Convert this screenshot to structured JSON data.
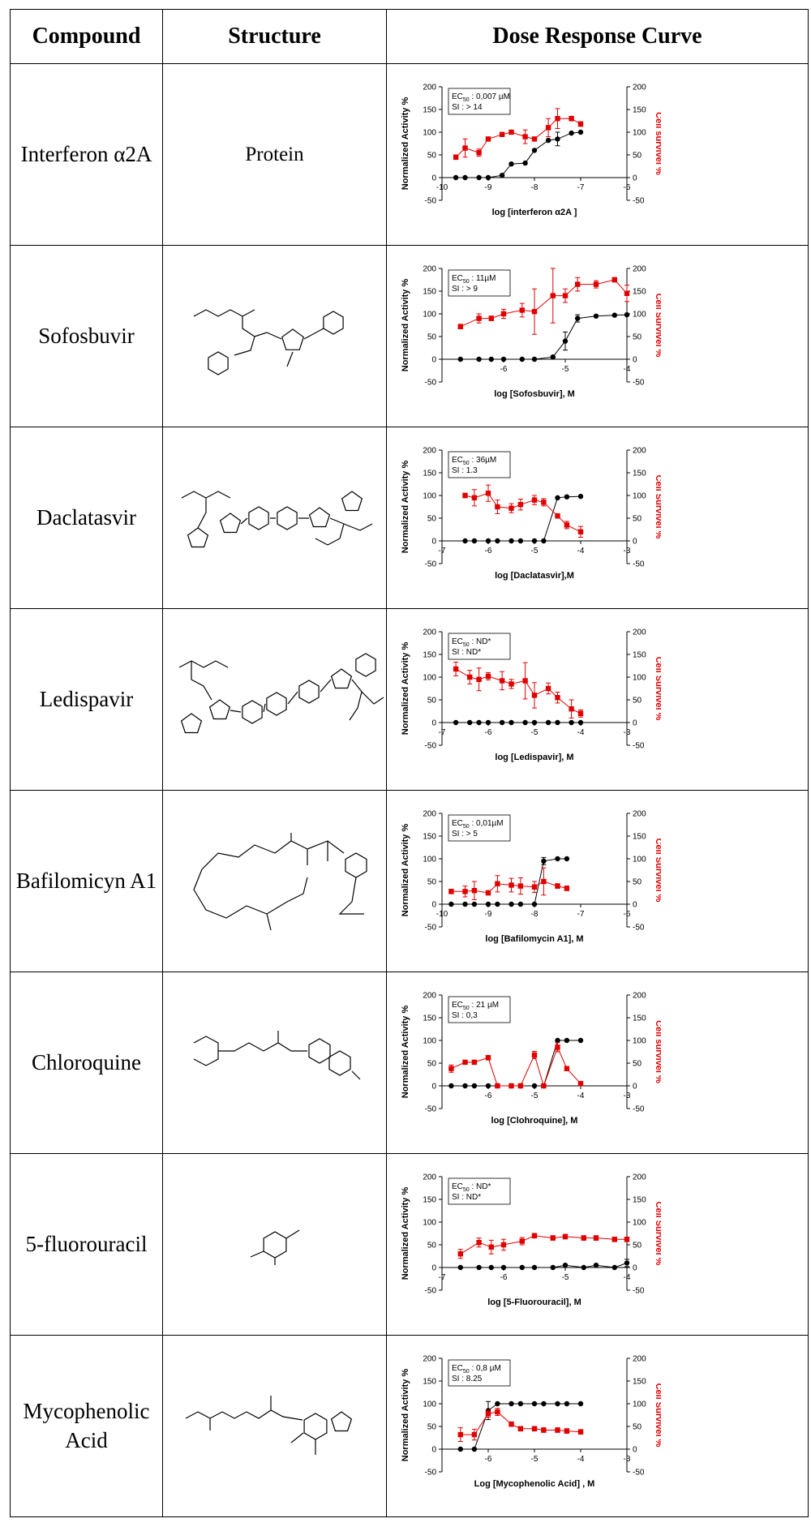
{
  "headers": [
    "Compound",
    "Structure",
    "Dose Response Curve"
  ],
  "colors": {
    "activity": "#000000",
    "survival": "#e00000"
  },
  "rows": [
    {
      "compound": "Interferon α2A",
      "structure_text": "Protein",
      "structure_icon": "",
      "chart_data": {
        "type": "scatter",
        "xlabel": "log [interferon α2A ]",
        "ylabel": "Normalized Activity %",
        "y2label": "Cell survivel %",
        "xlim": [
          -10,
          -6
        ],
        "xticks": [
          -10,
          -9,
          -8,
          -7,
          -6
        ],
        "ylim": [
          -50,
          200
        ],
        "ec50": "0,007 µM",
        "si": "> 14",
        "series": [
          {
            "name": "Normalized Activity %",
            "x": [
              -9.7,
              -9.5,
              -9.2,
              -9.0,
              -8.7,
              -8.5,
              -8.2,
              -8.0,
              -7.7,
              -7.5,
              -7.2,
              -7.0
            ],
            "y": [
              0,
              0,
              0,
              0,
              5,
              30,
              32,
              60,
              82,
              85,
              98,
              100
            ],
            "err": [
              0,
              0,
              0,
              0,
              0,
              0,
              0,
              0,
              0,
              15,
              0,
              0
            ]
          },
          {
            "name": "Cell survivel %",
            "x": [
              -9.7,
              -9.5,
              -9.2,
              -9.0,
              -8.7,
              -8.5,
              -8.2,
              -8.0,
              -7.7,
              -7.5,
              -7.2,
              -7.0
            ],
            "y": [
              45,
              65,
              55,
              85,
              95,
              100,
              90,
              85,
              110,
              130,
              130,
              118
            ],
            "err": [
              5,
              20,
              8,
              0,
              0,
              0,
              15,
              0,
              20,
              22,
              5,
              5
            ]
          }
        ]
      }
    },
    {
      "compound": "Sofosbuvir",
      "structure_text": "",
      "structure_icon": "sofosbuvir-structure",
      "chart_data": {
        "type": "scatter",
        "xlabel": "log [Sofosbuvir], M",
        "ylabel": "Normalized Activity %",
        "y2label": "Cell Survivel %",
        "xlim": [
          -7,
          -4
        ],
        "xticks": [
          -6,
          -5,
          -4
        ],
        "ylim": [
          -50,
          200
        ],
        "ec50": "11µM",
        "si": "> 9",
        "series": [
          {
            "name": "Normalized Activity %",
            "x": [
              -6.7,
              -6.4,
              -6.2,
              -6.0,
              -5.7,
              -5.5,
              -5.2,
              -5.0,
              -4.8,
              -4.5,
              -4.2,
              -4.0
            ],
            "y": [
              0,
              0,
              0,
              0,
              0,
              0,
              5,
              40,
              90,
              95,
              97,
              98
            ],
            "err": [
              0,
              0,
              0,
              0,
              0,
              0,
              0,
              20,
              8,
              0,
              0,
              0
            ]
          },
          {
            "name": "Cell Survivel %",
            "x": [
              -6.7,
              -6.4,
              -6.2,
              -6.0,
              -5.7,
              -5.5,
              -5.2,
              -5.0,
              -4.8,
              -4.5,
              -4.2,
              -4.0
            ],
            "y": [
              72,
              90,
              90,
              100,
              108,
              105,
              140,
              140,
              165,
              165,
              175,
              145
            ],
            "err": [
              5,
              10,
              5,
              10,
              15,
              50,
              60,
              15,
              15,
              8,
              5,
              18
            ]
          }
        ]
      }
    },
    {
      "compound": "Daclatasvir",
      "structure_text": "",
      "structure_icon": "daclatasvir-structure",
      "chart_data": {
        "type": "scatter",
        "xlabel": "log [Daclatasvir],M",
        "ylabel": "Normalized Activity %",
        "y2label": "Cell Survivel %",
        "xlim": [
          -7,
          -3
        ],
        "xticks": [
          -7,
          -6,
          -5,
          -4,
          -3
        ],
        "ylim": [
          -50,
          200
        ],
        "ec50": "36µM",
        "si": "1.3",
        "series": [
          {
            "name": "Normalized Activity %",
            "x": [
              -6.5,
              -6.3,
              -6.0,
              -5.8,
              -5.5,
              -5.3,
              -5.0,
              -4.8,
              -4.5,
              -4.3,
              -4.0
            ],
            "y": [
              0,
              0,
              0,
              0,
              0,
              0,
              0,
              0,
              95,
              97,
              98
            ],
            "err": [
              0,
              0,
              0,
              0,
              0,
              0,
              0,
              0,
              0,
              0,
              0
            ]
          },
          {
            "name": "Cell Survivel %",
            "x": [
              -6.5,
              -6.3,
              -6.0,
              -5.8,
              -5.5,
              -5.3,
              -5.0,
              -4.8,
              -4.5,
              -4.3,
              -4.0
            ],
            "y": [
              100,
              95,
              105,
              75,
              72,
              80,
              90,
              85,
              55,
              35,
              20
            ],
            "err": [
              5,
              18,
              18,
              15,
              10,
              12,
              10,
              8,
              5,
              8,
              12
            ]
          }
        ]
      }
    },
    {
      "compound": "Ledispavir",
      "structure_text": "",
      "structure_icon": "ledispavir-structure",
      "chart_data": {
        "type": "scatter",
        "xlabel": "log [Ledispavir], M",
        "ylabel": "Normalized Activity %",
        "y2label": "Cell Survivel %",
        "xlim": [
          -7,
          -3
        ],
        "xticks": [
          -7,
          -6,
          -5,
          -4,
          -3
        ],
        "ylim": [
          -50,
          200
        ],
        "ec50": "ND*",
        "si": "ND*",
        "series": [
          {
            "name": "Normalized Activity %",
            "x": [
              -6.7,
              -6.4,
              -6.2,
              -6.0,
              -5.7,
              -5.5,
              -5.2,
              -5.0,
              -4.7,
              -4.5,
              -4.2,
              -4.0
            ],
            "y": [
              0,
              0,
              0,
              0,
              0,
              0,
              0,
              0,
              0,
              0,
              0,
              0
            ],
            "err": [
              0,
              0,
              0,
              0,
              0,
              0,
              0,
              0,
              0,
              0,
              0,
              0
            ]
          },
          {
            "name": "Cell Survivel %",
            "x": [
              -6.7,
              -6.4,
              -6.2,
              -6.0,
              -5.7,
              -5.5,
              -5.2,
              -5.0,
              -4.7,
              -4.5,
              -4.2,
              -4.0
            ],
            "y": [
              118,
              100,
              95,
              102,
              92,
              85,
              92,
              60,
              75,
              55,
              30,
              20
            ],
            "err": [
              15,
              15,
              25,
              8,
              20,
              10,
              40,
              28,
              12,
              12,
              20,
              8
            ]
          }
        ]
      }
    },
    {
      "compound": "Bafilomicyn A1",
      "structure_text": "",
      "structure_icon": "bafilomycin-structure",
      "chart_data": {
        "type": "scatter",
        "xlabel": "log [Bafilomycin A1], M",
        "ylabel": "Normalized Activity %",
        "y2label": "Cell Survivel %",
        "xlim": [
          -10,
          -6
        ],
        "xticks": [
          -10,
          -9,
          -8,
          -7,
          -6
        ],
        "ylim": [
          -50,
          200
        ],
        "ec50": "0,01µM",
        "si": "> 5",
        "series": [
          {
            "name": "Normalized Activity %",
            "x": [
              -9.8,
              -9.5,
              -9.3,
              -9.0,
              -8.8,
              -8.5,
              -8.3,
              -8.0,
              -7.8,
              -7.5,
              -7.3
            ],
            "y": [
              0,
              0,
              0,
              0,
              0,
              0,
              0,
              0,
              95,
              100,
              100
            ],
            "err": [
              0,
              0,
              0,
              0,
              0,
              0,
              0,
              0,
              8,
              0,
              0
            ]
          },
          {
            "name": "Cell Survivel %",
            "x": [
              -9.8,
              -9.5,
              -9.3,
              -9.0,
              -8.8,
              -8.5,
              -8.3,
              -8.0,
              -7.8,
              -7.5,
              -7.3
            ],
            "y": [
              28,
              28,
              30,
              25,
              45,
              42,
              40,
              38,
              50,
              40,
              35
            ],
            "err": [
              5,
              12,
              20,
              5,
              18,
              15,
              18,
              12,
              30,
              5,
              5
            ]
          }
        ]
      }
    },
    {
      "compound": "Chloroquine",
      "structure_text": "",
      "structure_icon": "chloroquine-structure",
      "chart_data": {
        "type": "scatter",
        "xlabel": "log [Clohroquine], M",
        "ylabel": "Normalized Activity %",
        "y2label": "Cell survivel %",
        "xlim": [
          -7,
          -3
        ],
        "xticks": [
          -6,
          -5,
          -4,
          -3
        ],
        "ylim": [
          -50,
          200
        ],
        "ec50": "21 µM",
        "si": "0,3",
        "series": [
          {
            "name": "Normalized Activity %",
            "x": [
              -6.8,
              -6.5,
              -6.3,
              -6.0,
              -5.8,
              -5.5,
              -5.3,
              -5.0,
              -4.8,
              -4.5,
              -4.3,
              -4.0
            ],
            "y": [
              0,
              0,
              0,
              0,
              0,
              0,
              0,
              0,
              0,
              100,
              100,
              100
            ],
            "err": [
              0,
              0,
              0,
              0,
              0,
              0,
              0,
              0,
              0,
              0,
              0,
              0
            ]
          },
          {
            "name": "Cell survivel %",
            "x": [
              -6.8,
              -6.5,
              -6.3,
              -6.0,
              -5.8,
              -5.5,
              -5.3,
              -5.0,
              -4.8,
              -4.5,
              -4.3,
              -4.0
            ],
            "y": [
              38,
              52,
              52,
              62,
              0,
              0,
              0,
              68,
              0,
              85,
              38,
              5
            ],
            "err": [
              8,
              0,
              0,
              5,
              0,
              0,
              0,
              8,
              0,
              10,
              0,
              0
            ]
          }
        ]
      }
    },
    {
      "compound": "5-fluorouracil",
      "structure_text": "",
      "structure_icon": "fluorouracil-structure",
      "chart_data": {
        "type": "scatter",
        "xlabel": "log [5-Fluorouracil], M",
        "ylabel": "Normalized Activity %",
        "y2label": "Cell Survivel %",
        "xlim": [
          -7,
          -4
        ],
        "xticks": [
          -7,
          -6,
          -5,
          -4
        ],
        "ylim": [
          -50,
          200
        ],
        "ec50": "ND*",
        "si": "ND*",
        "series": [
          {
            "name": "Normalized Activity %",
            "x": [
              -6.7,
              -6.4,
              -6.2,
              -6.0,
              -5.7,
              -5.5,
              -5.2,
              -5.0,
              -4.7,
              -4.5,
              -4.2,
              -4.0
            ],
            "y": [
              0,
              0,
              0,
              0,
              0,
              0,
              0,
              5,
              0,
              5,
              0,
              10
            ],
            "err": [
              0,
              0,
              0,
              0,
              0,
              0,
              0,
              0,
              0,
              0,
              0,
              8
            ]
          },
          {
            "name": "Cell Survivel %",
            "x": [
              -6.7,
              -6.4,
              -6.2,
              -6.0,
              -5.7,
              -5.5,
              -5.2,
              -5.0,
              -4.7,
              -4.5,
              -4.2,
              -4.0
            ],
            "y": [
              30,
              55,
              45,
              50,
              58,
              70,
              65,
              68,
              65,
              65,
              62,
              62
            ],
            "err": [
              10,
              10,
              15,
              12,
              8,
              5,
              5,
              5,
              5,
              5,
              5,
              5
            ]
          }
        ]
      }
    },
    {
      "compound": "Mycophenolic Acid",
      "structure_text": "",
      "structure_icon": "mycophenolic-acid-structure",
      "chart_data": {
        "type": "scatter",
        "xlabel": "Log [Mycophenolic Acid] , M",
        "ylabel": "Normalized Activity %",
        "y2label": "Cell Survivel %",
        "xlim": [
          -7,
          -3
        ],
        "xticks": [
          -6,
          -5,
          -4,
          -3
        ],
        "ylim": [
          -50,
          200
        ],
        "ec50": "0,8 µM",
        "si": "8.25",
        "series": [
          {
            "name": "Normalized Activity %",
            "x": [
              -6.6,
              -6.3,
              -6.0,
              -5.8,
              -5.5,
              -5.3,
              -5.0,
              -4.8,
              -4.5,
              -4.3,
              -4.0
            ],
            "y": [
              0,
              0,
              85,
              100,
              100,
              100,
              100,
              100,
              100,
              100,
              100
            ],
            "err": [
              0,
              0,
              20,
              0,
              0,
              0,
              0,
              0,
              0,
              0,
              0
            ]
          },
          {
            "name": "Cell Survivel %",
            "x": [
              -6.6,
              -6.3,
              -6.0,
              -5.8,
              -5.5,
              -5.3,
              -5.0,
              -4.8,
              -4.5,
              -4.3,
              -4.0
            ],
            "y": [
              32,
              32,
              78,
              82,
              55,
              45,
              45,
              42,
              42,
              40,
              38
            ],
            "err": [
              15,
              12,
              8,
              8,
              5,
              5,
              5,
              5,
              5,
              5,
              5
            ]
          }
        ]
      }
    }
  ]
}
